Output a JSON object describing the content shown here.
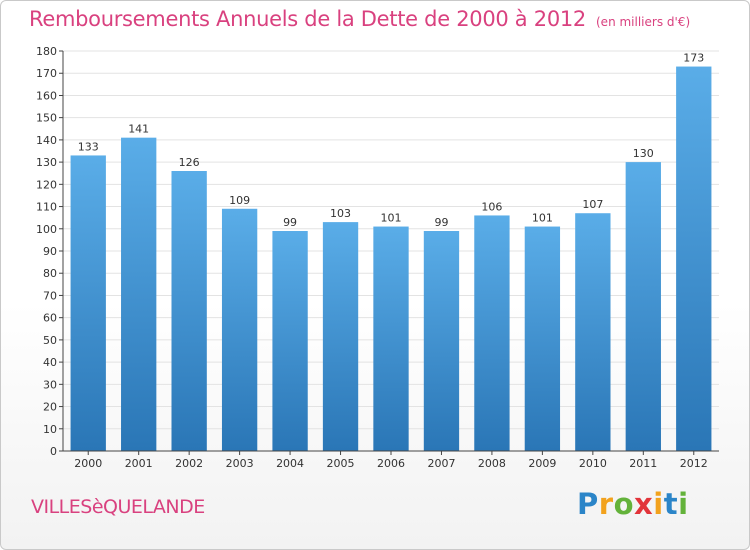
{
  "header": {
    "title": "Remboursements Annuels de la Dette de 2000 à 2012",
    "unit": "(en milliers d'€)"
  },
  "footer": {
    "place": "VILLESèQUELANDE",
    "logo_letters": [
      "P",
      "r",
      "o",
      "x",
      "i",
      "t",
      "i"
    ]
  },
  "colors": {
    "title": "#d9417f",
    "bar_top": "#5aade8",
    "bar_bottom": "#2a76b6",
    "grid": "#e3e3e3",
    "axis": "#444444"
  },
  "chart_data": {
    "type": "bar",
    "title": "Remboursements Annuels de la Dette de 2000 à 2012",
    "subtitle": "(en milliers d'€)",
    "xlabel": "",
    "ylabel": "",
    "categories": [
      "2000",
      "2001",
      "2002",
      "2003",
      "2004",
      "2005",
      "2006",
      "2007",
      "2008",
      "2009",
      "2010",
      "2011",
      "2012"
    ],
    "values": [
      133,
      141,
      126,
      109,
      99,
      103,
      101,
      99,
      106,
      101,
      107,
      130,
      173
    ],
    "data_labels": [
      "133",
      "141",
      "126",
      "109",
      "99",
      "103",
      "101",
      "99",
      "106",
      "101",
      "107",
      "130",
      "173"
    ],
    "ylim": [
      0,
      180
    ],
    "yticks": [
      0,
      10,
      20,
      30,
      40,
      50,
      60,
      70,
      80,
      90,
      100,
      110,
      120,
      130,
      140,
      150,
      160,
      170,
      180
    ],
    "grid": true,
    "legend": "none"
  }
}
